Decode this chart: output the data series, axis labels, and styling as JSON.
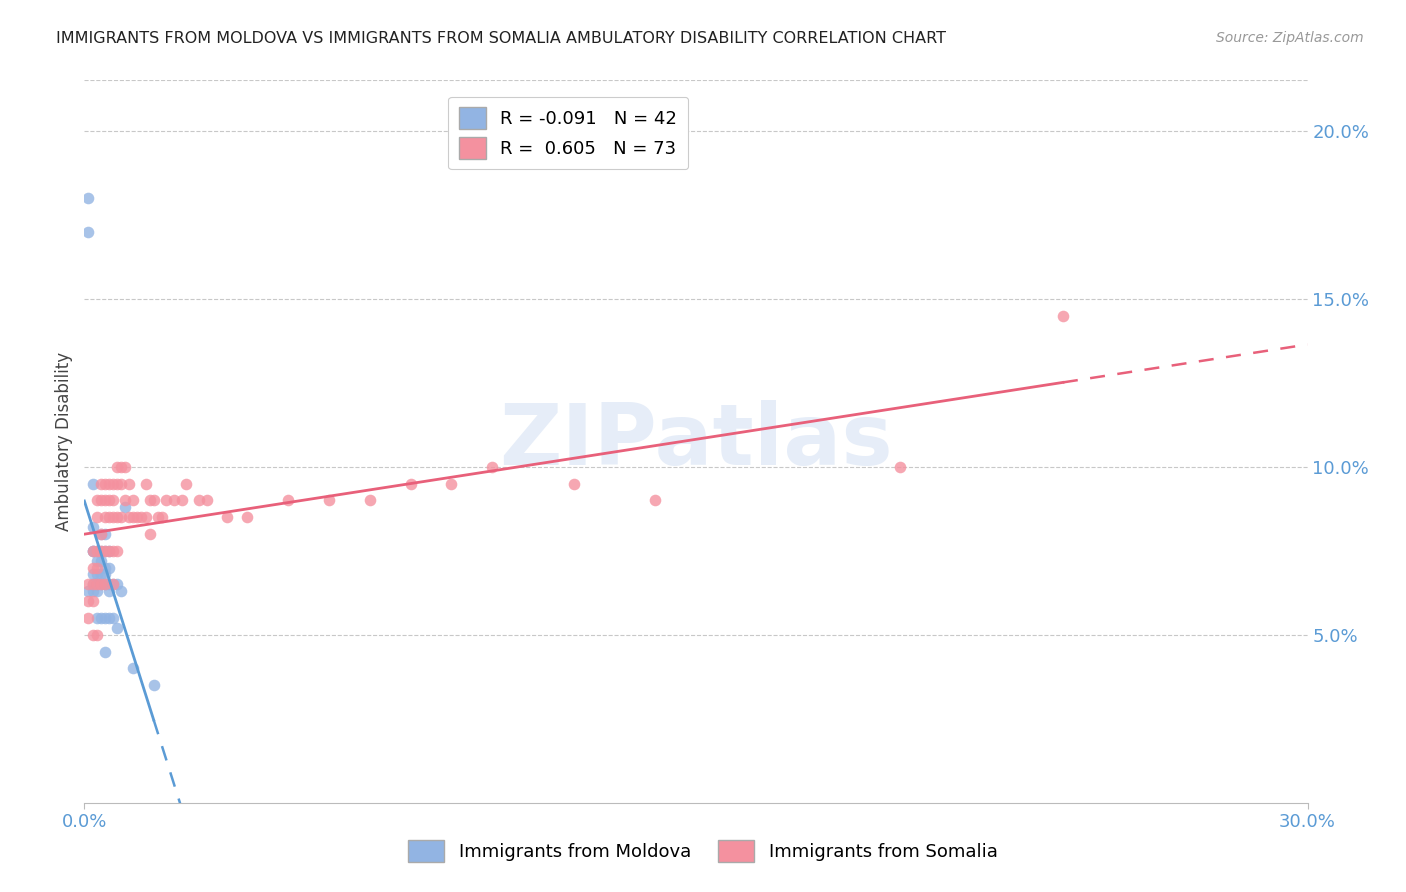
{
  "title": "IMMIGRANTS FROM MOLDOVA VS IMMIGRANTS FROM SOMALIA AMBULATORY DISABILITY CORRELATION CHART",
  "source": "Source: ZipAtlas.com",
  "ylabel": "Ambulatory Disability",
  "watermark": "ZIPatlas",
  "moldova_color": "#92b4e3",
  "somalia_color": "#f4919f",
  "moldova_line_color": "#5b9bd5",
  "somalia_line_color": "#e8607a",
  "moldova_R": -0.091,
  "moldova_N": 42,
  "somalia_R": 0.605,
  "somalia_N": 73,
  "moldova_scatter_x": [
    0.001,
    0.001,
    0.001,
    0.002,
    0.002,
    0.002,
    0.002,
    0.002,
    0.002,
    0.002,
    0.003,
    0.003,
    0.003,
    0.003,
    0.003,
    0.003,
    0.004,
    0.004,
    0.004,
    0.004,
    0.004,
    0.004,
    0.005,
    0.005,
    0.005,
    0.005,
    0.005,
    0.005,
    0.005,
    0.006,
    0.006,
    0.006,
    0.006,
    0.006,
    0.007,
    0.007,
    0.008,
    0.008,
    0.009,
    0.01,
    0.012,
    0.017
  ],
  "moldova_scatter_y": [
    0.18,
    0.17,
    0.063,
    0.095,
    0.075,
    0.082,
    0.075,
    0.068,
    0.065,
    0.063,
    0.075,
    0.072,
    0.068,
    0.065,
    0.063,
    0.055,
    0.08,
    0.075,
    0.072,
    0.068,
    0.065,
    0.055,
    0.08,
    0.075,
    0.07,
    0.068,
    0.065,
    0.055,
    0.045,
    0.075,
    0.07,
    0.065,
    0.063,
    0.055,
    0.065,
    0.055,
    0.065,
    0.052,
    0.063,
    0.088,
    0.04,
    0.035
  ],
  "somalia_scatter_x": [
    0.001,
    0.001,
    0.001,
    0.002,
    0.002,
    0.002,
    0.002,
    0.002,
    0.003,
    0.003,
    0.003,
    0.003,
    0.003,
    0.003,
    0.004,
    0.004,
    0.004,
    0.004,
    0.004,
    0.005,
    0.005,
    0.005,
    0.005,
    0.005,
    0.006,
    0.006,
    0.006,
    0.006,
    0.007,
    0.007,
    0.007,
    0.007,
    0.007,
    0.008,
    0.008,
    0.008,
    0.008,
    0.009,
    0.009,
    0.009,
    0.01,
    0.01,
    0.011,
    0.011,
    0.012,
    0.012,
    0.013,
    0.014,
    0.015,
    0.015,
    0.016,
    0.016,
    0.017,
    0.018,
    0.019,
    0.02,
    0.022,
    0.024,
    0.025,
    0.028,
    0.03,
    0.035,
    0.04,
    0.05,
    0.06,
    0.07,
    0.08,
    0.09,
    0.1,
    0.12,
    0.14,
    0.2,
    0.24
  ],
  "somalia_scatter_y": [
    0.065,
    0.06,
    0.055,
    0.075,
    0.07,
    0.065,
    0.06,
    0.05,
    0.09,
    0.085,
    0.075,
    0.07,
    0.065,
    0.05,
    0.095,
    0.09,
    0.08,
    0.075,
    0.065,
    0.095,
    0.09,
    0.085,
    0.075,
    0.065,
    0.095,
    0.09,
    0.085,
    0.075,
    0.095,
    0.09,
    0.085,
    0.075,
    0.065,
    0.1,
    0.095,
    0.085,
    0.075,
    0.1,
    0.095,
    0.085,
    0.1,
    0.09,
    0.095,
    0.085,
    0.09,
    0.085,
    0.085,
    0.085,
    0.095,
    0.085,
    0.09,
    0.08,
    0.09,
    0.085,
    0.085,
    0.09,
    0.09,
    0.09,
    0.095,
    0.09,
    0.09,
    0.085,
    0.085,
    0.09,
    0.09,
    0.09,
    0.095,
    0.095,
    0.1,
    0.095,
    0.09,
    0.1,
    0.145
  ],
  "xmin": 0.0,
  "xmax": 0.3,
  "ymin": 0.0,
  "ymax": 0.215,
  "moldova_line_xmax_solid": 0.017,
  "somalia_line_xmax_solid": 0.24,
  "background_color": "#ffffff",
  "grid_color": "#c8c8c8",
  "ytick_vals": [
    0.05,
    0.1,
    0.15,
    0.2
  ],
  "ytick_labels": [
    "5.0%",
    "10.0%",
    "15.0%",
    "20.0%"
  ],
  "xtick_vals": [
    0.0,
    0.3
  ],
  "xtick_labels": [
    "0.0%",
    "30.0%"
  ]
}
